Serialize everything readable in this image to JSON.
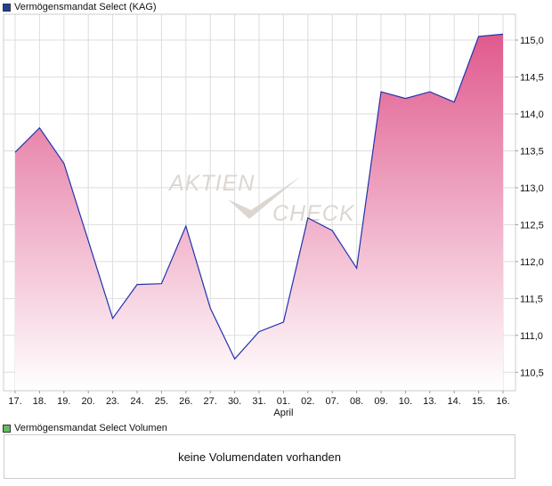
{
  "legend": {
    "price_label": "Vermögensmandat Select (KAG)",
    "price_color": "#1f3f99",
    "volume_label": "Vermögensmandat Select Volumen",
    "volume_color": "#66bb66"
  },
  "volume_message": "keine Volumendaten vorhanden",
  "watermark": {
    "line1": "AKTIEN",
    "line2": "CHECK"
  },
  "colors": {
    "line": "#2233aa",
    "fill_top": "#e05a8e",
    "fill_bottom": "#ffffff",
    "grid": "#dddddd",
    "frame": "#cccccc"
  },
  "chart_data": {
    "type": "area",
    "title": "Vermögensmandat Select (KAG)",
    "categories": [
      "17.",
      "18.",
      "19.",
      "20.",
      "23.",
      "24.",
      "25.",
      "26.",
      "27.",
      "30.",
      "31.",
      "01.",
      "02.",
      "07.",
      "08.",
      "09.",
      "10.",
      "13.",
      "14.",
      "15.",
      "16."
    ],
    "month_labels": [
      {
        "index": 11,
        "text": "April"
      }
    ],
    "series": [
      {
        "name": "Vermögensmandat Select (KAG)",
        "values": [
          113.48,
          113.81,
          113.33,
          112.28,
          111.23,
          111.69,
          111.7,
          112.48,
          111.37,
          110.68,
          111.05,
          111.18,
          112.59,
          112.42,
          111.91,
          114.3,
          114.21,
          114.3,
          114.16,
          115.05,
          115.08
        ]
      }
    ],
    "y_ticks": [
      "110,5",
      "111,0",
      "111,5",
      "112,0",
      "112,5",
      "113,0",
      "113,5",
      "114,0",
      "114,5",
      "115,0"
    ],
    "y_tick_values": [
      110.5,
      111.0,
      111.5,
      112.0,
      112.5,
      113.0,
      113.5,
      114.0,
      114.5,
      115.0
    ],
    "ylim": [
      110.25,
      115.35
    ],
    "grid": true,
    "legend_position": "top-left"
  }
}
